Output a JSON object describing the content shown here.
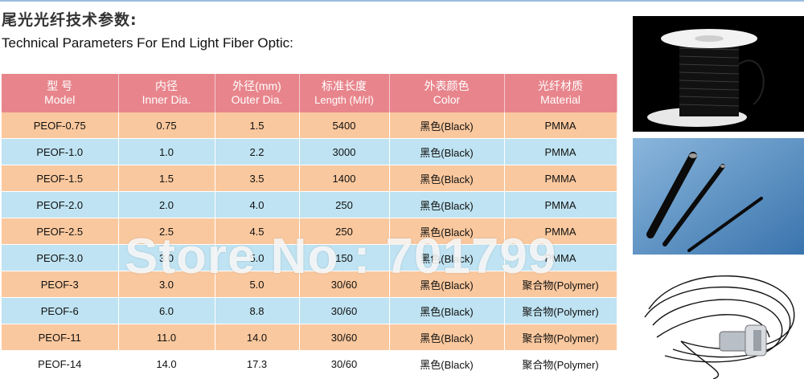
{
  "heading": {
    "title_cn": "尾光光纤技术参数:",
    "title_en": "Technical Parameters For End Light Fiber Optic:"
  },
  "table": {
    "headers": [
      {
        "cn": "型 号",
        "en": "Model"
      },
      {
        "cn": "内径",
        "en": "Inner Dia."
      },
      {
        "cn": "外径(mm)",
        "en": "Outer Dia."
      },
      {
        "cn": "标准长度",
        "en": "Length (M/rl)"
      },
      {
        "cn": "外表颜色",
        "en": "Color"
      },
      {
        "cn": "光纤材质",
        "en": "Material"
      }
    ],
    "rows": [
      {
        "model": "PEOF-0.75",
        "inner": "0.75",
        "outer": "1.5",
        "length": "5400",
        "color": "黑色(Black)",
        "material": "PMMA"
      },
      {
        "model": "PEOF-1.0",
        "inner": "1.0",
        "outer": "2.2",
        "length": "3000",
        "color": "黑色(Black)",
        "material": "PMMA"
      },
      {
        "model": "PEOF-1.5",
        "inner": "1.5",
        "outer": "3.5",
        "length": "1400",
        "color": "黑色(Black)",
        "material": "PMMA"
      },
      {
        "model": "PEOF-2.0",
        "inner": "2.0",
        "outer": "4.0",
        "length": "250",
        "color": "黑色(Black)",
        "material": "PMMA"
      },
      {
        "model": "PEOF-2.5",
        "inner": "2.5",
        "outer": "4.5",
        "length": "250",
        "color": "黑色(Black)",
        "material": "PMMA"
      },
      {
        "model": "PEOF-3.0",
        "inner": "3.0",
        "outer": "5.0",
        "length": "150",
        "color": "黑色(Black)",
        "material": "PMMA"
      },
      {
        "model": "PEOF-3",
        "inner": "3.0",
        "outer": "5.0",
        "length": "30/60",
        "color": "黑色(Black)",
        "material": "聚合物(Polymer)"
      },
      {
        "model": "PEOF-6",
        "inner": "6.0",
        "outer": "8.8",
        "length": "30/60",
        "color": "黑色(Black)",
        "material": "聚合物(Polymer)"
      },
      {
        "model": "PEOF-11",
        "inner": "11.0",
        "outer": "14.0",
        "length": "30/60",
        "color": "黑色(Black)",
        "material": "聚合物(Polymer)"
      },
      {
        "model": "PEOF-14",
        "inner": "14.0",
        "outer": "17.3",
        "length": "30/60",
        "color": "黑色(Black)",
        "material": "聚合物(Polymer)"
      }
    ]
  },
  "watermark": "Store No : 701799",
  "colors": {
    "header_bg": "#e8858c",
    "row_peach": "#fac89e",
    "row_blue": "#bfe3f2"
  }
}
